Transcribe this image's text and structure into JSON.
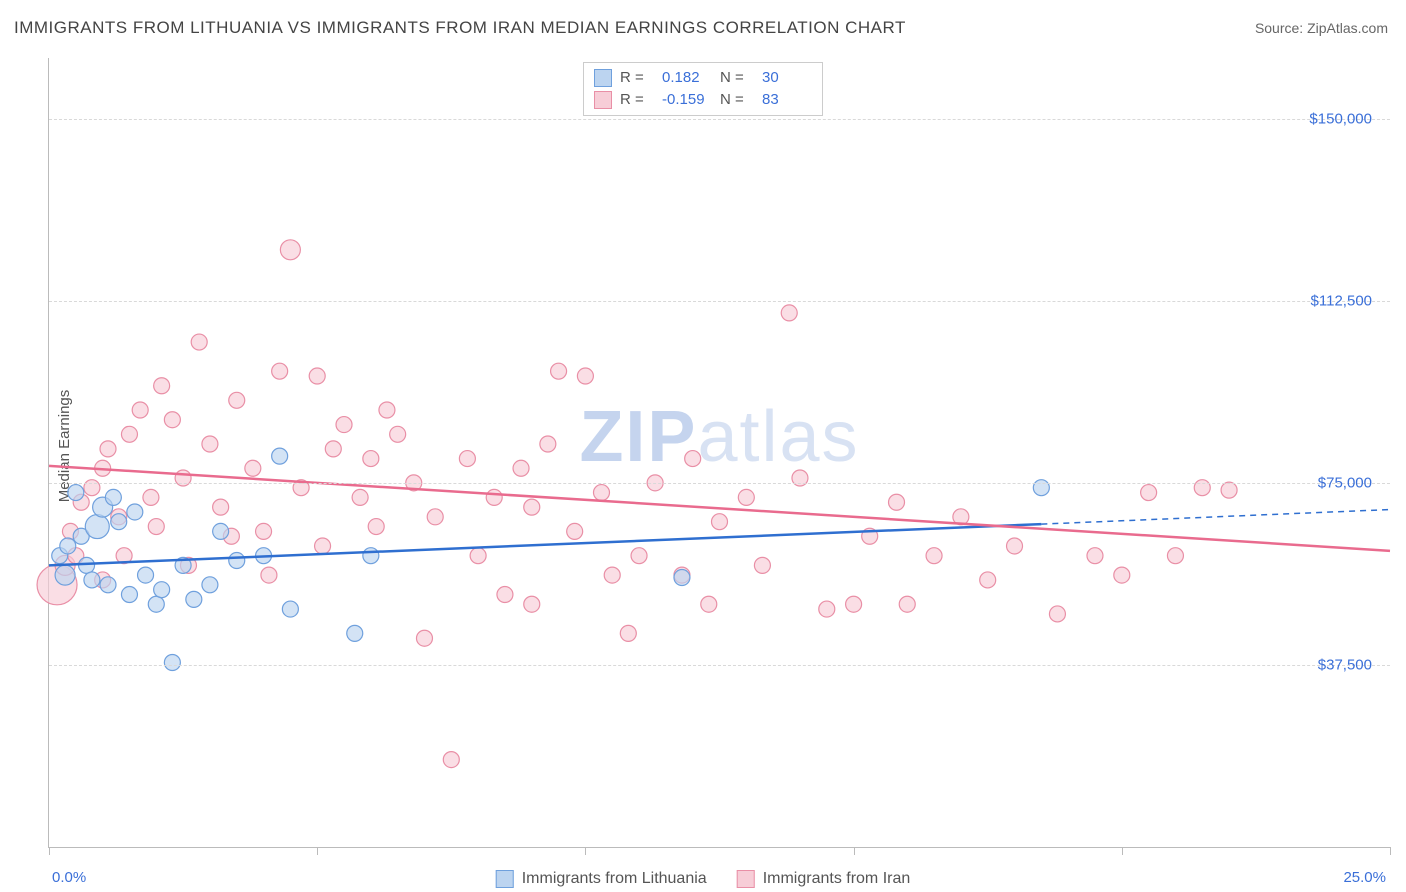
{
  "title": "IMMIGRANTS FROM LITHUANIA VS IMMIGRANTS FROM IRAN MEDIAN EARNINGS CORRELATION CHART",
  "source": "Source: ZipAtlas.com",
  "ylabel": "Median Earnings",
  "watermark_bold": "ZIP",
  "watermark_rest": "atlas",
  "chart": {
    "type": "scatter",
    "xlim": [
      0,
      25
    ],
    "ylim": [
      0,
      162500
    ],
    "x_tick_step": 5,
    "x_min_label": "0.0%",
    "x_max_label": "25.0%",
    "y_gridlines": [
      37500,
      75000,
      112500,
      150000
    ],
    "y_tick_labels": [
      "$37,500",
      "$75,000",
      "$112,500",
      "$150,000"
    ],
    "background_color": "#ffffff",
    "grid_color": "#d9d9d9",
    "axis_color": "#bbbbbb",
    "tick_label_color": "#3a6fd8",
    "title_color": "#444444",
    "title_fontsize": 17,
    "label_fontsize": 15,
    "series": [
      {
        "name": "Immigrants from Lithuania",
        "fill": "#bcd4f0",
        "stroke": "#6fa0dd",
        "line_color": "#2f6fd0",
        "R": "0.182",
        "N": "30",
        "trend": {
          "x1": 0,
          "y1": 58000,
          "x2": 18.5,
          "y2": 66500,
          "extend_x2": 25,
          "extend_y2": 69500
        },
        "points": [
          {
            "x": 0.2,
            "y": 60000,
            "r": 8
          },
          {
            "x": 0.3,
            "y": 56000,
            "r": 10
          },
          {
            "x": 0.35,
            "y": 62000,
            "r": 8
          },
          {
            "x": 0.5,
            "y": 73000,
            "r": 8
          },
          {
            "x": 0.6,
            "y": 64000,
            "r": 8
          },
          {
            "x": 0.7,
            "y": 58000,
            "r": 8
          },
          {
            "x": 0.9,
            "y": 66000,
            "r": 12
          },
          {
            "x": 1.0,
            "y": 70000,
            "r": 10
          },
          {
            "x": 1.1,
            "y": 54000,
            "r": 8
          },
          {
            "x": 1.3,
            "y": 67000,
            "r": 8
          },
          {
            "x": 1.5,
            "y": 52000,
            "r": 8
          },
          {
            "x": 1.6,
            "y": 69000,
            "r": 8
          },
          {
            "x": 1.8,
            "y": 56000,
            "r": 8
          },
          {
            "x": 2.0,
            "y": 50000,
            "r": 8
          },
          {
            "x": 2.1,
            "y": 53000,
            "r": 8
          },
          {
            "x": 2.3,
            "y": 38000,
            "r": 8
          },
          {
            "x": 2.5,
            "y": 58000,
            "r": 8
          },
          {
            "x": 2.7,
            "y": 51000,
            "r": 8
          },
          {
            "x": 3.0,
            "y": 54000,
            "r": 8
          },
          {
            "x": 3.2,
            "y": 65000,
            "r": 8
          },
          {
            "x": 3.5,
            "y": 59000,
            "r": 8
          },
          {
            "x": 4.0,
            "y": 60000,
            "r": 8
          },
          {
            "x": 4.3,
            "y": 80500,
            "r": 8
          },
          {
            "x": 4.5,
            "y": 49000,
            "r": 8
          },
          {
            "x": 5.7,
            "y": 44000,
            "r": 8
          },
          {
            "x": 6.0,
            "y": 60000,
            "r": 8
          },
          {
            "x": 11.8,
            "y": 55500,
            "r": 8
          },
          {
            "x": 18.5,
            "y": 74000,
            "r": 8
          },
          {
            "x": 1.2,
            "y": 72000,
            "r": 8
          },
          {
            "x": 0.8,
            "y": 55000,
            "r": 8
          }
        ]
      },
      {
        "name": "Immigrants from Iran",
        "fill": "#f7cdd7",
        "stroke": "#e98fa6",
        "line_color": "#e96b8e",
        "R": "-0.159",
        "N": "83",
        "trend": {
          "x1": 0,
          "y1": 78500,
          "x2": 25,
          "y2": 61000
        },
        "points": [
          {
            "x": 0.15,
            "y": 54000,
            "r": 20
          },
          {
            "x": 0.3,
            "y": 58000,
            "r": 10
          },
          {
            "x": 0.4,
            "y": 65000,
            "r": 8
          },
          {
            "x": 0.5,
            "y": 60000,
            "r": 8
          },
          {
            "x": 0.6,
            "y": 71000,
            "r": 8
          },
          {
            "x": 0.8,
            "y": 74000,
            "r": 8
          },
          {
            "x": 1.0,
            "y": 78000,
            "r": 8
          },
          {
            "x": 1.1,
            "y": 82000,
            "r": 8
          },
          {
            "x": 1.3,
            "y": 68000,
            "r": 8
          },
          {
            "x": 1.5,
            "y": 85000,
            "r": 8
          },
          {
            "x": 1.7,
            "y": 90000,
            "r": 8
          },
          {
            "x": 1.9,
            "y": 72000,
            "r": 8
          },
          {
            "x": 2.1,
            "y": 95000,
            "r": 8
          },
          {
            "x": 2.3,
            "y": 88000,
            "r": 8
          },
          {
            "x": 2.5,
            "y": 76000,
            "r": 8
          },
          {
            "x": 2.8,
            "y": 104000,
            "r": 8
          },
          {
            "x": 3.0,
            "y": 83000,
            "r": 8
          },
          {
            "x": 3.2,
            "y": 70000,
            "r": 8
          },
          {
            "x": 3.5,
            "y": 92000,
            "r": 8
          },
          {
            "x": 3.8,
            "y": 78000,
            "r": 8
          },
          {
            "x": 4.0,
            "y": 65000,
            "r": 8
          },
          {
            "x": 4.3,
            "y": 98000,
            "r": 8
          },
          {
            "x": 4.5,
            "y": 123000,
            "r": 10
          },
          {
            "x": 4.7,
            "y": 74000,
            "r": 8
          },
          {
            "x": 5.0,
            "y": 97000,
            "r": 8
          },
          {
            "x": 5.3,
            "y": 82000,
            "r": 8
          },
          {
            "x": 5.5,
            "y": 87000,
            "r": 8
          },
          {
            "x": 5.8,
            "y": 72000,
            "r": 8
          },
          {
            "x": 6.0,
            "y": 80000,
            "r": 8
          },
          {
            "x": 6.3,
            "y": 90000,
            "r": 8
          },
          {
            "x": 6.5,
            "y": 85000,
            "r": 8
          },
          {
            "x": 6.8,
            "y": 75000,
            "r": 8
          },
          {
            "x": 7.0,
            "y": 43000,
            "r": 8
          },
          {
            "x": 7.2,
            "y": 68000,
            "r": 8
          },
          {
            "x": 7.5,
            "y": 18000,
            "r": 8
          },
          {
            "x": 7.8,
            "y": 80000,
            "r": 8
          },
          {
            "x": 8.0,
            "y": 60000,
            "r": 8
          },
          {
            "x": 8.3,
            "y": 72000,
            "r": 8
          },
          {
            "x": 8.5,
            "y": 52000,
            "r": 8
          },
          {
            "x": 8.8,
            "y": 78000,
            "r": 8
          },
          {
            "x": 9.0,
            "y": 70000,
            "r": 8
          },
          {
            "x": 9.3,
            "y": 83000,
            "r": 8
          },
          {
            "x": 9.5,
            "y": 98000,
            "r": 8
          },
          {
            "x": 9.8,
            "y": 65000,
            "r": 8
          },
          {
            "x": 10.0,
            "y": 97000,
            "r": 8
          },
          {
            "x": 10.3,
            "y": 73000,
            "r": 8
          },
          {
            "x": 10.5,
            "y": 56000,
            "r": 8
          },
          {
            "x": 10.8,
            "y": 44000,
            "r": 8
          },
          {
            "x": 11.0,
            "y": 60000,
            "r": 8
          },
          {
            "x": 11.3,
            "y": 75000,
            "r": 8
          },
          {
            "x": 11.8,
            "y": 56000,
            "r": 8
          },
          {
            "x": 12.0,
            "y": 80000,
            "r": 8
          },
          {
            "x": 12.3,
            "y": 50000,
            "r": 8
          },
          {
            "x": 12.5,
            "y": 67000,
            "r": 8
          },
          {
            "x": 13.0,
            "y": 72000,
            "r": 8
          },
          {
            "x": 13.3,
            "y": 58000,
            "r": 8
          },
          {
            "x": 13.8,
            "y": 110000,
            "r": 8
          },
          {
            "x": 14.0,
            "y": 76000,
            "r": 8
          },
          {
            "x": 14.5,
            "y": 49000,
            "r": 8
          },
          {
            "x": 15.0,
            "y": 50000,
            "r": 8
          },
          {
            "x": 15.3,
            "y": 64000,
            "r": 8
          },
          {
            "x": 15.8,
            "y": 71000,
            "r": 8
          },
          {
            "x": 16.0,
            "y": 50000,
            "r": 8
          },
          {
            "x": 16.5,
            "y": 60000,
            "r": 8
          },
          {
            "x": 17.0,
            "y": 68000,
            "r": 8
          },
          {
            "x": 17.5,
            "y": 55000,
            "r": 8
          },
          {
            "x": 18.0,
            "y": 62000,
            "r": 8
          },
          {
            "x": 18.8,
            "y": 48000,
            "r": 8
          },
          {
            "x": 19.5,
            "y": 60000,
            "r": 8
          },
          {
            "x": 20.0,
            "y": 56000,
            "r": 8
          },
          {
            "x": 20.5,
            "y": 73000,
            "r": 8
          },
          {
            "x": 21.0,
            "y": 60000,
            "r": 8
          },
          {
            "x": 21.5,
            "y": 74000,
            "r": 8
          },
          {
            "x": 22.0,
            "y": 73500,
            "r": 8
          },
          {
            "x": 1.0,
            "y": 55000,
            "r": 8
          },
          {
            "x": 1.4,
            "y": 60000,
            "r": 8
          },
          {
            "x": 2.0,
            "y": 66000,
            "r": 8
          },
          {
            "x": 2.6,
            "y": 58000,
            "r": 8
          },
          {
            "x": 3.4,
            "y": 64000,
            "r": 8
          },
          {
            "x": 4.1,
            "y": 56000,
            "r": 8
          },
          {
            "x": 5.1,
            "y": 62000,
            "r": 8
          },
          {
            "x": 6.1,
            "y": 66000,
            "r": 8
          },
          {
            "x": 9.0,
            "y": 50000,
            "r": 8
          }
        ]
      }
    ]
  }
}
